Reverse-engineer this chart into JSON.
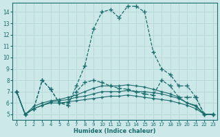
{
  "xlabel": "Humidex (Indice chaleur)",
  "xlim": [
    -0.5,
    23.5
  ],
  "ylim": [
    4.5,
    14.8
  ],
  "xticks": [
    0,
    1,
    2,
    3,
    4,
    5,
    6,
    7,
    8,
    9,
    10,
    11,
    12,
    13,
    14,
    15,
    16,
    17,
    18,
    19,
    20,
    21,
    22,
    23
  ],
  "yticks": [
    5,
    6,
    7,
    8,
    9,
    10,
    11,
    12,
    13,
    14
  ],
  "bg_color": "#cce8e8",
  "line_color": "#1a6b6b",
  "grid_color": "#b8d8d8",
  "lines": [
    {
      "x": [
        0,
        1,
        2,
        3,
        4,
        5,
        6,
        7,
        8,
        9,
        10,
        11,
        12,
        13,
        14,
        15,
        16,
        17,
        18,
        19,
        20,
        21,
        22,
        23
      ],
      "y": [
        7.0,
        5.0,
        5.5,
        8.0,
        7.2,
        6.0,
        5.8,
        7.5,
        9.3,
        12.5,
        14.0,
        14.2,
        13.5,
        14.5,
        14.5,
        14.0,
        10.5,
        9.0,
        8.5,
        7.5,
        7.5,
        6.5,
        5.0,
        5.0
      ],
      "linestyle": "--",
      "linewidth": 0.9,
      "marker": "+",
      "markersize": 4
    },
    {
      "x": [
        0,
        1,
        2,
        3,
        4,
        5,
        6,
        7,
        8,
        9,
        10,
        11,
        12,
        13,
        14,
        15,
        16,
        17,
        18,
        19,
        20,
        21,
        22,
        23
      ],
      "y": [
        7.0,
        5.0,
        5.5,
        8.0,
        7.2,
        6.0,
        6.0,
        7.0,
        7.8,
        8.0,
        7.8,
        7.5,
        7.3,
        7.2,
        7.0,
        6.8,
        6.7,
        8.0,
        7.5,
        6.5,
        6.5,
        6.5,
        5.0,
        5.0
      ],
      "linestyle": "--",
      "linewidth": 0.9,
      "marker": "+",
      "markersize": 4
    },
    {
      "x": [
        0,
        1,
        2,
        3,
        4,
        5,
        6,
        7,
        8,
        9,
        10,
        11,
        12,
        13,
        14,
        15,
        16,
        17,
        18,
        19,
        20,
        21,
        22,
        23
      ],
      "y": [
        7.0,
        5.0,
        5.5,
        5.8,
        6.0,
        6.0,
        6.1,
        6.2,
        6.3,
        6.4,
        6.5,
        6.6,
        6.6,
        6.7,
        6.6,
        6.5,
        6.4,
        6.3,
        6.2,
        6.0,
        5.8,
        5.5,
        5.0,
        5.0
      ],
      "linestyle": "-",
      "linewidth": 0.8,
      "marker": "+",
      "markersize": 3
    },
    {
      "x": [
        0,
        1,
        2,
        3,
        4,
        5,
        6,
        7,
        8,
        9,
        10,
        11,
        12,
        13,
        14,
        15,
        16,
        17,
        18,
        19,
        20,
        21,
        22,
        23
      ],
      "y": [
        7.0,
        5.0,
        5.5,
        5.8,
        6.1,
        6.2,
        6.3,
        6.5,
        6.6,
        6.8,
        7.0,
        7.0,
        7.0,
        7.1,
        7.0,
        7.0,
        6.9,
        6.8,
        6.6,
        6.4,
        6.0,
        5.7,
        5.0,
        5.0
      ],
      "linestyle": "-",
      "linewidth": 0.8,
      "marker": "+",
      "markersize": 3
    },
    {
      "x": [
        0,
        1,
        2,
        3,
        4,
        5,
        6,
        7,
        8,
        9,
        10,
        11,
        12,
        13,
        14,
        15,
        16,
        17,
        18,
        19,
        20,
        21,
        22,
        23
      ],
      "y": [
        7.0,
        5.0,
        5.7,
        6.0,
        6.2,
        6.3,
        6.5,
        6.7,
        7.0,
        7.3,
        7.5,
        7.5,
        7.5,
        7.6,
        7.5,
        7.4,
        7.2,
        7.0,
        6.8,
        6.5,
        6.0,
        5.8,
        5.0,
        5.0
      ],
      "linestyle": "-",
      "linewidth": 0.8,
      "marker": "+",
      "markersize": 3
    }
  ]
}
